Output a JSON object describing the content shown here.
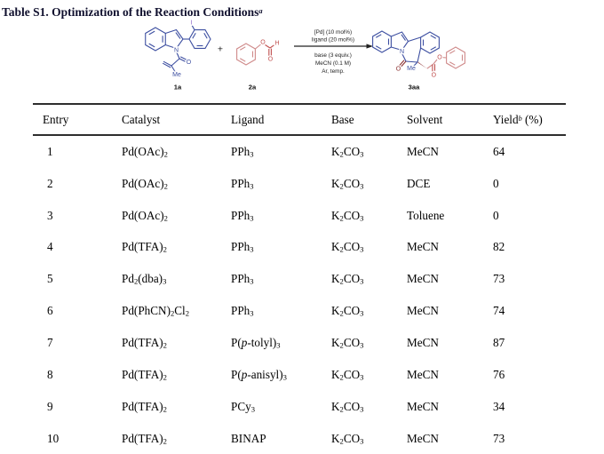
{
  "title": "Table S1. Optimization of the Reaction Conditions^a^",
  "scheme": {
    "plus": "+",
    "conditions_above": [
      "[Pd] (10 mol%)",
      "ligand (20 mol%)"
    ],
    "conditions_below": [
      "base (3 equiv.)",
      "MeCN (0.1 M)",
      "Ar, temp."
    ],
    "compounds": [
      "1a",
      "2a",
      "3aa"
    ],
    "atoms": {
      "N": "N",
      "O": "O",
      "I": "I",
      "H": "H",
      "Me": "Me"
    }
  },
  "table": {
    "headers": [
      "Entry",
      "Catalyst",
      "Ligand",
      "Base",
      "Solvent",
      "Yield^b^ (%)"
    ],
    "rows": [
      [
        "1",
        "Pd(OAc)~2~",
        "PPh~3~",
        "K~2~CO~3~",
        "MeCN",
        "64"
      ],
      [
        "2",
        "Pd(OAc)~2~",
        "PPh~3~",
        "K~2~CO~3~",
        "DCE",
        "0"
      ],
      [
        "3",
        "Pd(OAc)~2~",
        "PPh~3~",
        "K~2~CO~3~",
        "Toluene",
        "0"
      ],
      [
        "4",
        "Pd(TFA)~2~",
        "PPh~3~",
        "K~2~CO~3~",
        "MeCN",
        "82"
      ],
      [
        "5",
        "Pd~2~(dba)~3~",
        "PPh~3~",
        "K~2~CO~3~",
        "MeCN",
        "73"
      ],
      [
        "6",
        "Pd(PhCN)~2~Cl~2~",
        "PPh~3~",
        "K~2~CO~3~",
        "MeCN",
        "74"
      ],
      [
        "7",
        "Pd(TFA)~2~",
        "P(*p*-tolyl)~3~",
        "K~2~CO~3~",
        "MeCN",
        "87"
      ],
      [
        "8",
        "Pd(TFA)~2~",
        "P(*p*-anisyl)~3~",
        "K~2~CO~3~",
        "MeCN",
        "76"
      ],
      [
        "9",
        "Pd(TFA)~2~",
        "PCy~3~",
        "K~2~CO~3~",
        "MeCN",
        "34"
      ],
      [
        "10",
        "Pd(TFA)~2~",
        "BINAP",
        "K~2~CO~3~",
        "MeCN",
        "73"
      ]
    ]
  },
  "colors": {
    "structure_blue": "#3d4fa1",
    "structure_pink": "#cf8a8a",
    "oxygen_red": "#c0504f",
    "dark_red": "#8b3030",
    "iodine_purple": "#8a63c9",
    "arrow_black": "#222222"
  }
}
